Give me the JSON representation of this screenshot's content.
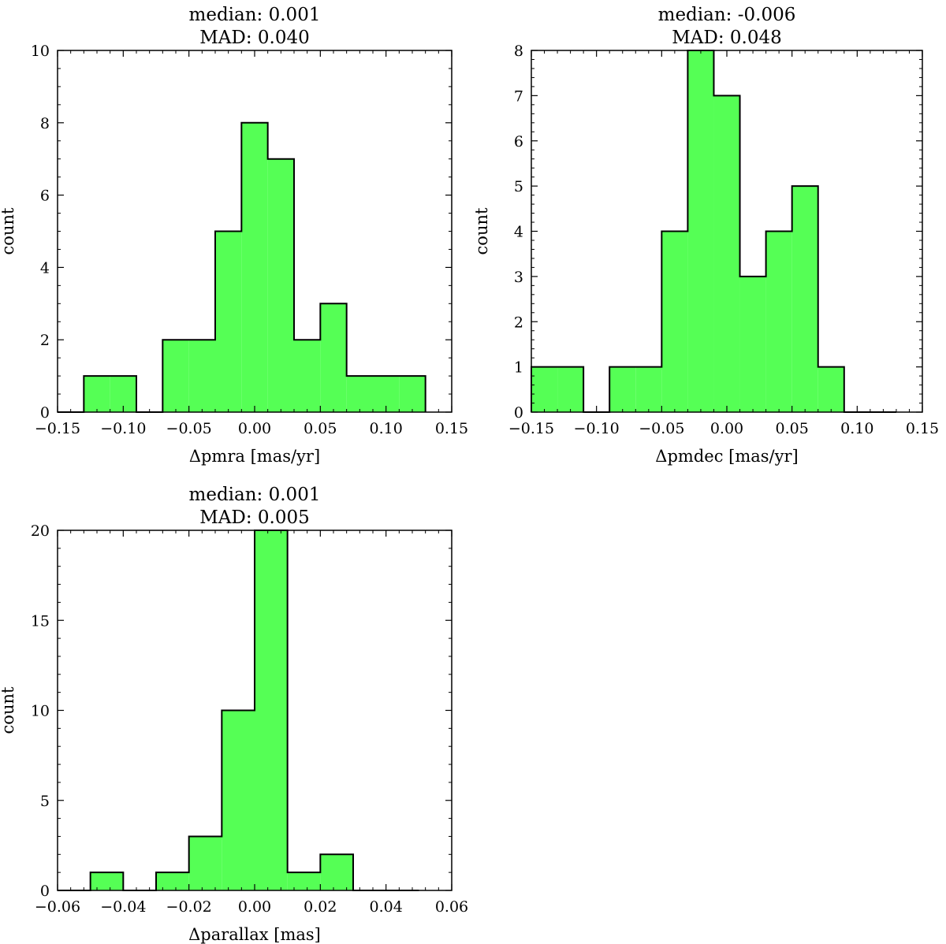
{
  "chart_data": [
    {
      "type": "bar",
      "title_lines": [
        "median: 0.001",
        "MAD: 0.040"
      ],
      "xlabel": "Δpmra [mas/yr]",
      "ylabel": "count",
      "xlim": [
        -0.15,
        0.15
      ],
      "ylim": [
        0,
        10
      ],
      "xticks": [
        -0.15,
        -0.1,
        -0.05,
        0.0,
        0.05,
        0.1,
        0.15
      ],
      "xtick_labels": [
        "−0.15",
        "−0.10",
        "−0.05",
        "0.00",
        "0.05",
        "0.10",
        "0.15"
      ],
      "yticks": [
        0,
        2,
        4,
        6,
        8,
        10
      ],
      "ytick_labels": [
        "0",
        "2",
        "4",
        "6",
        "8",
        "10"
      ],
      "bin_edges": [
        -0.15,
        -0.13,
        -0.11,
        -0.09,
        -0.07,
        -0.05,
        -0.03,
        -0.01,
        0.01,
        0.03,
        0.05,
        0.07,
        0.09,
        0.11,
        0.13
      ],
      "counts": [
        0,
        1,
        1,
        0,
        2,
        2,
        5,
        8,
        7,
        2,
        3,
        1,
        1,
        1
      ],
      "color": "#55ff55",
      "grid": false
    },
    {
      "type": "bar",
      "title_lines": [
        "median: -0.006",
        "MAD: 0.048"
      ],
      "xlabel": "Δpmdec [mas/yr]",
      "ylabel": "count",
      "xlim": [
        -0.15,
        0.15
      ],
      "ylim": [
        0,
        8
      ],
      "xticks": [
        -0.15,
        -0.1,
        -0.05,
        0.0,
        0.05,
        0.1,
        0.15
      ],
      "xtick_labels": [
        "−0.15",
        "−0.10",
        "−0.05",
        "0.00",
        "0.05",
        "0.10",
        "0.15"
      ],
      "yticks": [
        0,
        1,
        2,
        3,
        4,
        5,
        6,
        7,
        8
      ],
      "ytick_labels": [
        "0",
        "1",
        "2",
        "3",
        "4",
        "5",
        "6",
        "7",
        "8"
      ],
      "bin_edges": [
        -0.15,
        -0.13,
        -0.11,
        -0.09,
        -0.07,
        -0.05,
        -0.03,
        -0.01,
        0.01,
        0.03,
        0.05,
        0.07,
        0.09,
        0.11,
        0.13
      ],
      "counts": [
        1,
        1,
        0,
        1,
        1,
        4,
        8,
        7,
        3,
        4,
        5,
        1,
        0,
        0
      ],
      "color": "#55ff55",
      "grid": false
    },
    {
      "type": "bar",
      "title_lines": [
        "median: 0.001",
        "MAD: 0.005"
      ],
      "xlabel": "Δparallax [mas]",
      "ylabel": "count",
      "xlim": [
        -0.06,
        0.06
      ],
      "ylim": [
        0,
        20
      ],
      "xticks": [
        -0.06,
        -0.04,
        -0.02,
        0.0,
        0.02,
        0.04,
        0.06
      ],
      "xtick_labels": [
        "−0.06",
        "−0.04",
        "−0.02",
        "0.00",
        "0.02",
        "0.04",
        "0.06"
      ],
      "yticks": [
        0,
        5,
        10,
        15,
        20
      ],
      "ytick_labels": [
        "0",
        "5",
        "10",
        "15",
        "20"
      ],
      "bin_edges": [
        -0.06,
        -0.05,
        -0.04,
        -0.03,
        -0.02,
        -0.01,
        0.0,
        0.01,
        0.02,
        0.03,
        0.04,
        0.05
      ],
      "counts": [
        0,
        1,
        0,
        1,
        3,
        10,
        20,
        1,
        2,
        0,
        0
      ],
      "color": "#55ff55",
      "grid": false
    }
  ]
}
